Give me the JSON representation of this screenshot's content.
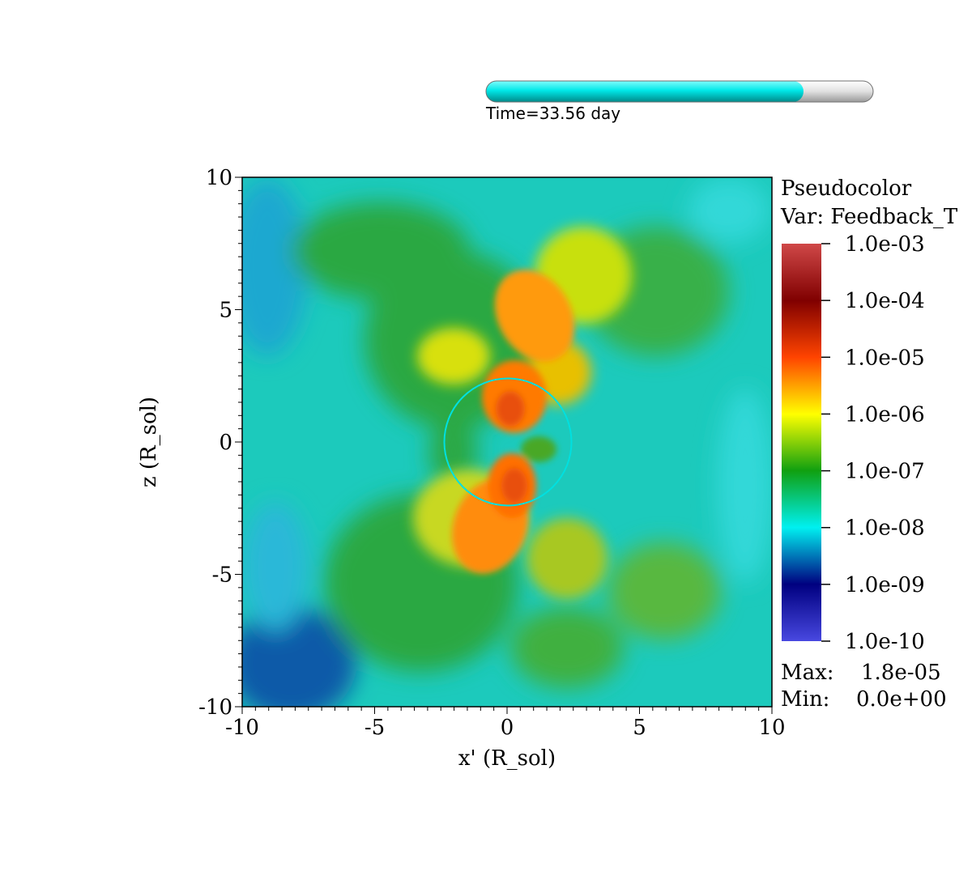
{
  "time_slider": {
    "label": "Time=33.56 day",
    "progress": 0.82,
    "fill_color": "#00e0e0",
    "track_color": "#d8d8d8"
  },
  "chart_data": {
    "type": "heatmap",
    "title": "",
    "xlabel": "x' (R_sol)",
    "ylabel": "z (R_sol)",
    "xlim": [
      -10,
      10
    ],
    "ylim": [
      -10,
      10
    ],
    "x_ticks": [
      -10,
      -5,
      0,
      5,
      10
    ],
    "y_ticks": [
      -10,
      -5,
      0,
      5,
      10
    ],
    "x_tick_labels": [
      "-10",
      "-5",
      "0",
      "5",
      "10"
    ],
    "y_tick_labels": [
      "-10",
      "-5",
      "0",
      "5",
      "10"
    ],
    "overlay_circle": {
      "center": [
        0,
        0
      ],
      "radius": 2.4,
      "color": "#00e0e0"
    },
    "field_description_colors": {
      "background": "#18c8b8",
      "cold": "#0a68b0",
      "mid": "#2aa832",
      "warm": "#e8e800",
      "hot": "#ff7000"
    },
    "legend": {
      "plot_type": "Pseudocolor",
      "variable": "Var: Feedback_T",
      "scale": "log",
      "levels": [
        "1.0e-03",
        "1.0e-04",
        "1.0e-05",
        "1.0e-06",
        "1.0e-07",
        "1.0e-08",
        "1.0e-09",
        "1.0e-10"
      ],
      "colors": [
        "#d04040",
        "#800000",
        "#ff4400",
        "#ffff00",
        "#10a010",
        "#00f0f0",
        "#000080",
        "#4040e0"
      ],
      "max_label": "Max:",
      "max_value": "1.8e-05",
      "min_label": "Min:",
      "min_value": "0.0e+00"
    }
  }
}
